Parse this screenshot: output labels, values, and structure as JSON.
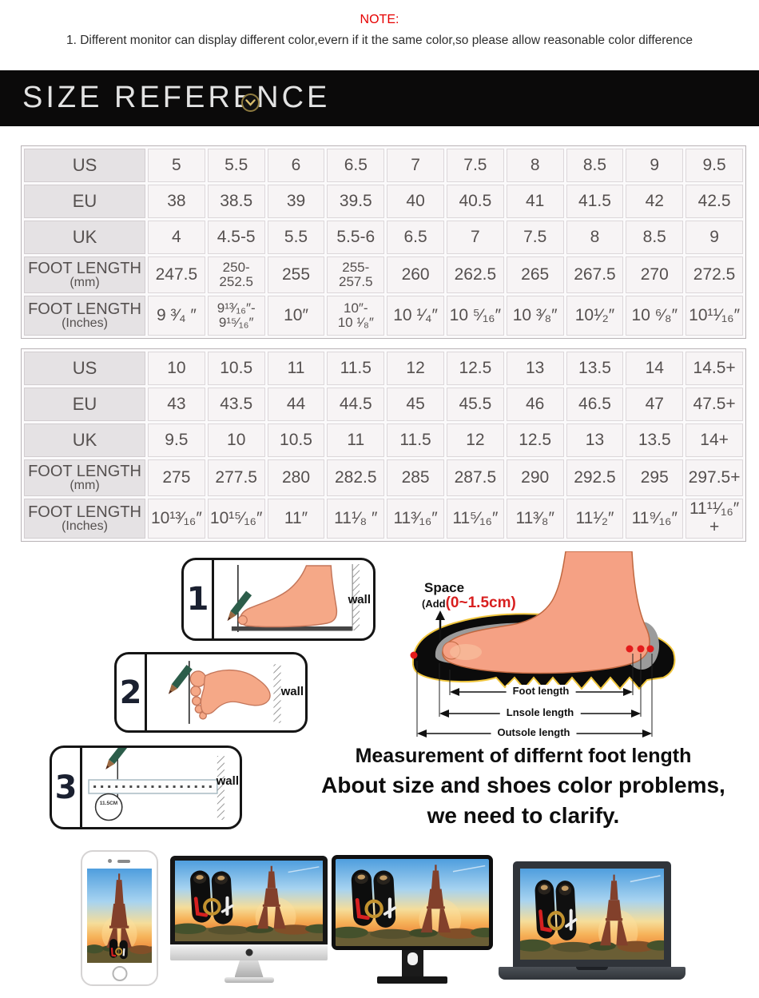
{
  "note": {
    "title": "NOTE:",
    "line1": "1. Different monitor can display different color,evern if it the same color,so please allow reasonable color difference"
  },
  "banner": {
    "title": "SIZE REFERENCE",
    "icon": "chevron-down-circle-icon"
  },
  "size_tables": [
    {
      "rows": [
        {
          "label": "US",
          "sublabel": "",
          "cells": [
            "5",
            "5.5",
            "6",
            "6.5",
            "7",
            "7.5",
            "8",
            "8.5",
            "9",
            "9.5"
          ]
        },
        {
          "label": "EU",
          "sublabel": "",
          "cells": [
            "38",
            "38.5",
            "39",
            "39.5",
            "40",
            "40.5",
            "41",
            "41.5",
            "42",
            "42.5"
          ]
        },
        {
          "label": "UK",
          "sublabel": "",
          "cells": [
            "4",
            "4.5-5",
            "5.5",
            "5.5-6",
            "6.5",
            "7",
            "7.5",
            "8",
            "8.5",
            "9"
          ]
        },
        {
          "label": "FOOT LENGTH",
          "sublabel": "(mm)",
          "cells": [
            "247.5",
            "250-\n252.5",
            "255",
            "255-\n257.5",
            "260",
            "262.5",
            "265",
            "267.5",
            "270",
            "272.5"
          ]
        },
        {
          "label": "FOOT LENGTH",
          "sublabel": "(Inches)",
          "cells": [
            "9 ³⁄₄ ″",
            "9¹³⁄₁₆″-\n9¹⁵⁄₁₆″",
            "10″",
            "10″-\n10 ¹⁄₈″",
            "10 ¹⁄₄″",
            "10 ⁵⁄₁₆″",
            "10 ³⁄₈″",
            "10¹⁄₂″",
            "10 ⁶⁄₈″",
            "10¹¹⁄₁₆″"
          ]
        }
      ]
    },
    {
      "rows": [
        {
          "label": "US",
          "sublabel": "",
          "cells": [
            "10",
            "10.5",
            "11",
            "11.5",
            "12",
            "12.5",
            "13",
            "13.5",
            "14",
            "14.5+"
          ]
        },
        {
          "label": "EU",
          "sublabel": "",
          "cells": [
            "43",
            "43.5",
            "44",
            "44.5",
            "45",
            "45.5",
            "46",
            "46.5",
            "47",
            "47.5+"
          ]
        },
        {
          "label": "UK",
          "sublabel": "",
          "cells": [
            "9.5",
            "10",
            "10.5",
            "11",
            "11.5",
            "12",
            "12.5",
            "13",
            "13.5",
            "14+"
          ]
        },
        {
          "label": "FOOT LENGTH",
          "sublabel": "(mm)",
          "cells": [
            "275",
            "277.5",
            "280",
            "282.5",
            "285",
            "287.5",
            "290",
            "292.5",
            "295",
            "297.5+"
          ]
        },
        {
          "label": "FOOT LENGTH",
          "sublabel": "(Inches)",
          "cells": [
            "10¹³⁄₁₆″",
            "10¹⁵⁄₁₆″",
            "11″",
            "11¹⁄₈ ″",
            "11³⁄₁₆″",
            "11⁵⁄₁₆″",
            "11³⁄₈″",
            "11¹⁄₂″",
            "11⁹⁄₁₆″",
            "11¹¹⁄₁₆″+"
          ]
        }
      ]
    }
  ],
  "steps": [
    {
      "number": "1",
      "wall_label": "wall"
    },
    {
      "number": "2",
      "wall_label": "wall"
    },
    {
      "number": "3",
      "wall_label": "wall",
      "ruler_label": "11.5CM"
    }
  ],
  "foot_diagram": {
    "space_label": "Space",
    "add_label": "(Add",
    "range_label": "(0~1.5cm)",
    "measure_labels": [
      "Foot length",
      "Lnsole length",
      "Outsole length"
    ]
  },
  "captions": {
    "line1": "Measurement of differnt foot length",
    "line2": "About size and shoes color problems,",
    "line3": "we need to clarify."
  },
  "colors": {
    "note_red": "#e60000",
    "range_red": "#d81f1f",
    "banner_bg": "#0b0a0a",
    "banner_gold": "#8f7b3f",
    "pencil_green": "#2c5d4a",
    "skin": "#f5a887",
    "label_cell_bg": "#e5e2e4",
    "data_cell_bg": "#f7f4f5"
  }
}
